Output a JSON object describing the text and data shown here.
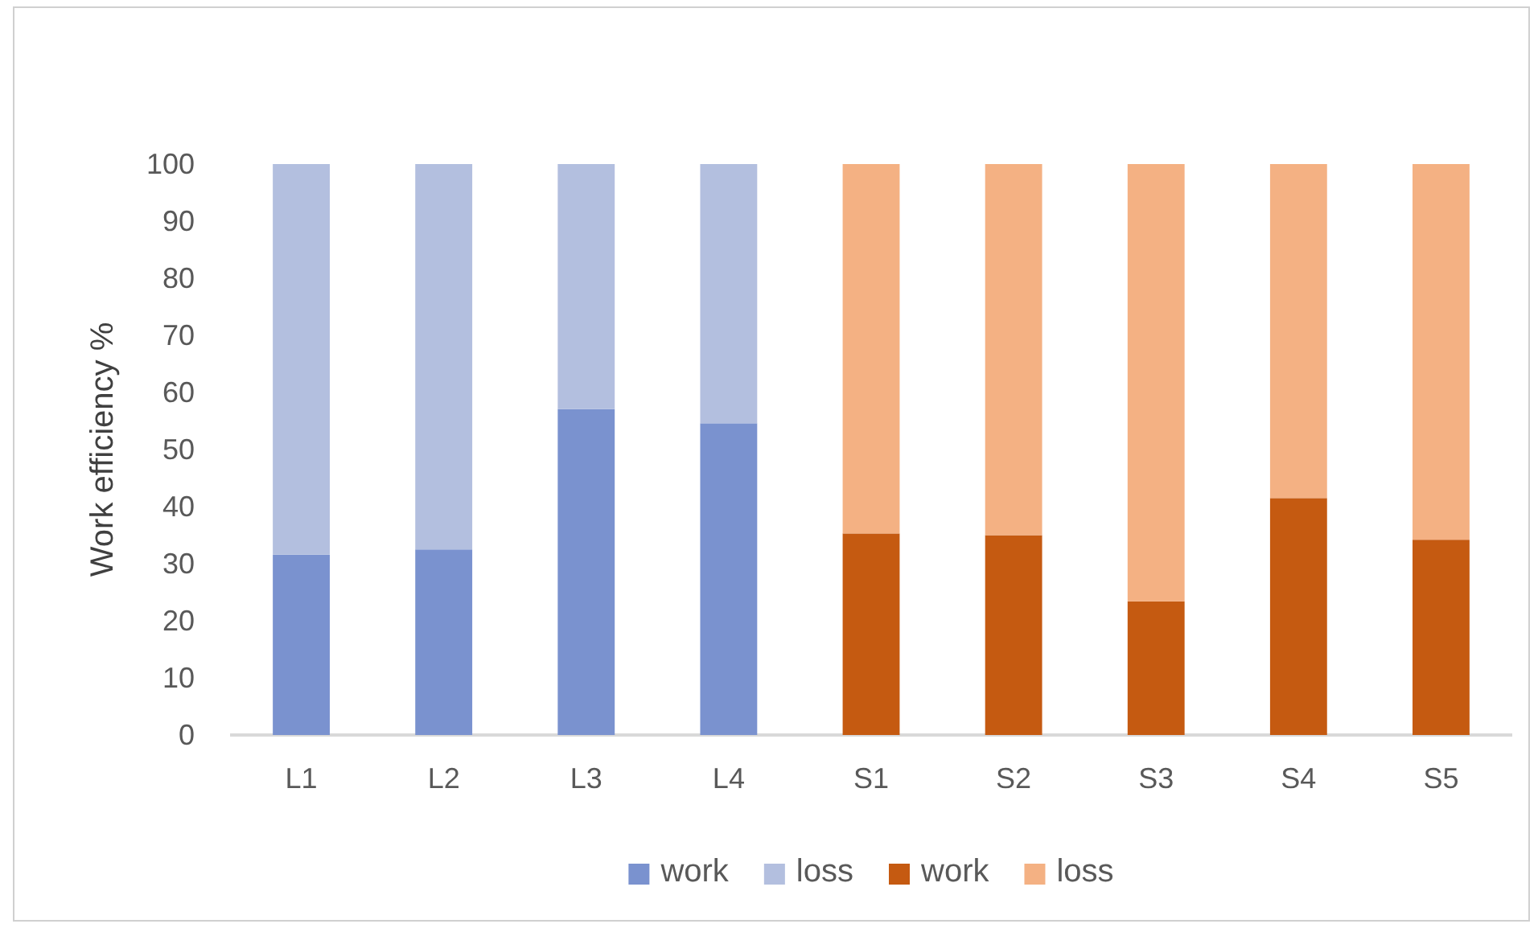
{
  "chart_data": {
    "type": "bar",
    "stacked": true,
    "ylabel": "Work efficiency %",
    "categories": [
      "L1",
      "L2",
      "L3",
      "L4",
      "S1",
      "S2",
      "S3",
      "S4",
      "S5"
    ],
    "series": [
      {
        "name": "work",
        "color": "#7a92cf",
        "values": [
          31.6,
          32.5,
          57.1,
          54.6,
          null,
          null,
          null,
          null,
          null
        ]
      },
      {
        "name": "loss",
        "color": "#b3bfdf",
        "values": [
          68.4,
          67.5,
          42.9,
          45.4,
          null,
          null,
          null,
          null,
          null
        ]
      },
      {
        "name": "work",
        "color": "#c55a11",
        "values": [
          null,
          null,
          null,
          null,
          35.3,
          35.0,
          23.4,
          41.5,
          34.2
        ]
      },
      {
        "name": "loss",
        "color": "#f4b183",
        "values": [
          null,
          null,
          null,
          null,
          64.7,
          65.0,
          76.6,
          58.5,
          65.8
        ]
      }
    ],
    "ylim": [
      0,
      100
    ],
    "yticks": [
      0,
      10,
      20,
      30,
      40,
      50,
      60,
      70,
      80,
      90,
      100
    ],
    "grid": false,
    "legend": "bottom"
  }
}
